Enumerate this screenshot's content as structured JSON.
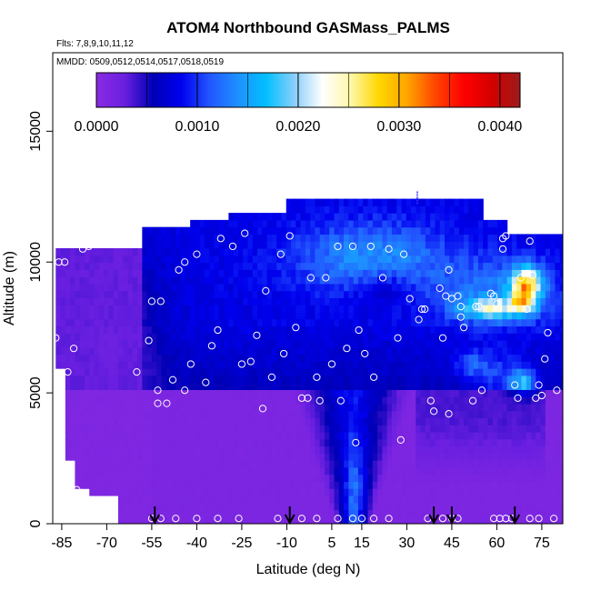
{
  "chart_data": {
    "type": "heatmap",
    "title": "ATOM4 Northbound GASMass_PALMS",
    "subtitle": "Flts: 7,8,9,10,11,12",
    "annotation": "MMDD: 0509,0512,0514,0517,0518,0519",
    "xlabel": "Latitude (deg N)",
    "ylabel": "Altitude (m)",
    "xlim": [
      -88,
      82
    ],
    "ylim": [
      0,
      18000
    ],
    "x_ticks": [
      -85,
      -70,
      -55,
      -40,
      -25,
      -10,
      5,
      15,
      30,
      45,
      60,
      75
    ],
    "y_ticks": [
      0,
      5000,
      10000,
      15000
    ],
    "colorbar": {
      "min": 0,
      "max": 0.0042,
      "ticks": [
        0.0,
        0.001,
        0.002,
        0.003,
        0.004
      ],
      "tick_labels": [
        "0.0000",
        "0.0010",
        "0.0020",
        "0.0030",
        "0.0040"
      ],
      "colors": [
        "#8a2be2",
        "#6a1fe0",
        "#0000b5",
        "#0000ee",
        "#2255ff",
        "#1e90ff",
        "#00bfff",
        "#87cefa",
        "#ffffff",
        "#fff7a8",
        "#ffd700",
        "#ffa500",
        "#ff4500",
        "#ff0000",
        "#d40000",
        "#9b1c1c"
      ]
    },
    "arrows_latitude": [
      -54,
      -9,
      39,
      45,
      66
    ],
    "grid": false,
    "legend": "colorbar top"
  },
  "colors": {
    "background": "#ffffff",
    "axis": "#000000",
    "sample_circle": "#ffffff"
  }
}
